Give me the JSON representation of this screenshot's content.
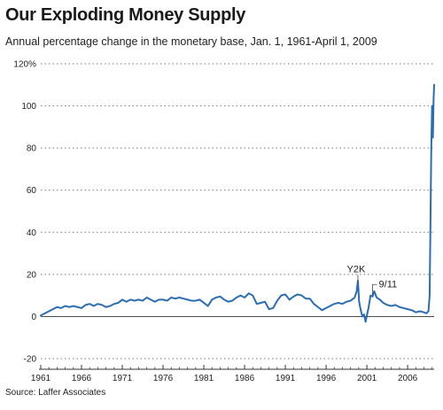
{
  "header": {
    "title": "Our Exploding Money Supply",
    "subtitle": "Annual percentage change in the monetary base, Jan. 1, 1961-April 1, 2009"
  },
  "footer": {
    "source": "Source: Laffer Associates"
  },
  "colors": {
    "line": "#2b6db3",
    "grid": "#777777",
    "axis": "#333333"
  },
  "chart_data": {
    "type": "line",
    "title": "Our Exploding Money Supply",
    "subtitle": "Annual percentage change in the monetary base, Jan. 1, 1961-April 1, 2009",
    "xlabel": "",
    "ylabel": "",
    "xlim": [
      1961,
      2009.25
    ],
    "ylim": [
      -20,
      120
    ],
    "y_ticks": [
      120,
      100,
      80,
      60,
      40,
      20,
      0,
      -20
    ],
    "y_tick_labels": [
      "120%",
      "100",
      "80",
      "60",
      "40",
      "20",
      "0",
      "-20"
    ],
    "x_ticks": [
      1961,
      1966,
      1971,
      1976,
      1981,
      1986,
      1991,
      1996,
      2001,
      2006
    ],
    "x_tick_labels": [
      "1961",
      "1966",
      "1971",
      "1976",
      "1981",
      "1986",
      "1991",
      "1996",
      "2001",
      "2006"
    ],
    "grid": "horizontal-dotted",
    "annotations": [
      {
        "text": "Y2K",
        "x": 1999.9,
        "y": 16
      },
      {
        "text": "9/11",
        "x": 2001.7,
        "y": 11
      }
    ],
    "series": [
      {
        "x": [
          1961,
          1961.5,
          1962,
          1962.5,
          1963,
          1963.5,
          1964,
          1964.5,
          1965,
          1965.5,
          1966,
          1966.5,
          1967,
          1967.5,
          1968,
          1968.5,
          1969,
          1969.5,
          1970,
          1970.5,
          1971,
          1971.5,
          1972,
          1972.5,
          1973,
          1973.5,
          1974,
          1974.5,
          1975,
          1975.5,
          1976,
          1976.5,
          1977,
          1977.5,
          1978,
          1978.5,
          1979,
          1979.5,
          1980,
          1980.5,
          1981,
          1981.5,
          1982,
          1982.5,
          1983,
          1983.5,
          1984,
          1984.5,
          1985,
          1985.5,
          1986,
          1986.5,
          1987,
          1987.5,
          1988,
          1988.5,
          1989,
          1989.5,
          1990,
          1990.5,
          1991,
          1991.5,
          1992,
          1992.5,
          1993,
          1993.5,
          1994,
          1994.5,
          1995,
          1995.5,
          1996,
          1996.5,
          1997,
          1997.5,
          1998,
          1998.5,
          1999,
          1999.5,
          1999.75,
          1999.9,
          2000.05,
          2000.25,
          2000.45,
          2000.65,
          2000.85,
          2001.0,
          2001.2,
          2001.45,
          2001.7,
          2001.9,
          2002.2,
          2002.6,
          2003,
          2003.5,
          2004,
          2004.5,
          2005,
          2005.5,
          2006,
          2006.5,
          2007,
          2007.5,
          2008,
          2008.3,
          2008.55,
          2008.7,
          2008.8,
          2008.9,
          2009.0,
          2009.1,
          2009.18,
          2009.25
        ],
        "y": [
          0.5,
          1.5,
          2.5,
          3.5,
          4.5,
          4.0,
          5.0,
          4.5,
          5.0,
          4.5,
          4.0,
          5.5,
          6.0,
          5.0,
          6.0,
          5.5,
          4.5,
          5.0,
          6.0,
          6.5,
          8.0,
          7.0,
          8.0,
          7.5,
          8.0,
          7.5,
          9.0,
          8.0,
          7.0,
          8.0,
          8.0,
          7.5,
          9.0,
          8.5,
          9.0,
          8.5,
          8.0,
          7.5,
          7.5,
          8.0,
          6.5,
          5.0,
          8.0,
          9.0,
          9.5,
          8.0,
          7.0,
          7.5,
          9.0,
          10.0,
          9.0,
          11.0,
          10.0,
          6.0,
          6.5,
          7.0,
          3.5,
          4.0,
          7.5,
          10.0,
          10.5,
          8.0,
          9.5,
          10.5,
          10.0,
          8.5,
          8.5,
          6.0,
          4.5,
          3.0,
          4.0,
          5.0,
          6.0,
          6.5,
          6.0,
          7.0,
          7.5,
          9.0,
          12.0,
          17.0,
          7.0,
          3.0,
          0.0,
          1.0,
          -2.5,
          0.5,
          4.0,
          10.0,
          9.5,
          12.0,
          9.0,
          8.0,
          6.5,
          5.5,
          5.0,
          5.5,
          4.5,
          4.0,
          3.5,
          3.0,
          2.0,
          2.5,
          2.0,
          1.5,
          2.5,
          10.0,
          45.0,
          80.0,
          100.0,
          85.0,
          103.0,
          110.0
        ]
      }
    ]
  }
}
